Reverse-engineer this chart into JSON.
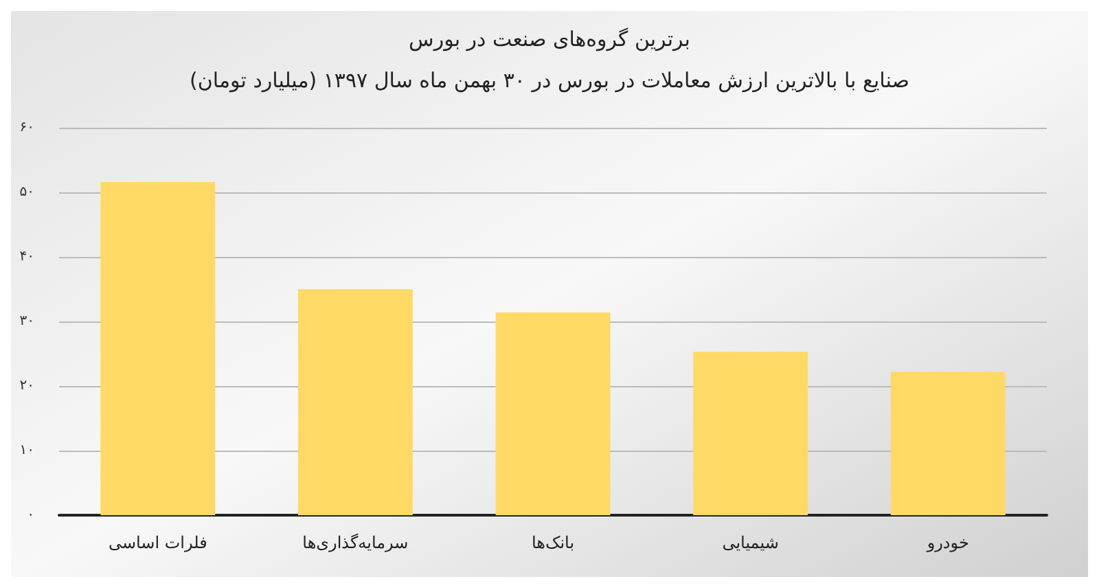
{
  "chart_data": {
    "type": "bar",
    "title": "برترین گروه‌های صنعت در بورس",
    "subtitle": "صنایع با بالاترین ارزش معاملات در بورس در ۳۰ بهمن ماه سال ۱۳۹۷ (میلیارد تومان)",
    "categories": [
      "فلرات اساسی",
      "سرمایه‌گذاری‌ها",
      "بانک‌ها",
      "شیمیایی",
      "خودرو"
    ],
    "values": [
      51.6,
      35.0,
      31.4,
      25.3,
      22.2
    ],
    "color": "#ffd966",
    "ylim": [
      0,
      60
    ],
    "yticks": [
      {
        "value": 0,
        "label": "۰"
      },
      {
        "value": 10,
        "label": "۱۰"
      },
      {
        "value": 20,
        "label": "۲۰"
      },
      {
        "value": 30,
        "label": "۳۰"
      },
      {
        "value": 40,
        "label": "۴۰"
      },
      {
        "value": 50,
        "label": "۵۰"
      },
      {
        "value": 60,
        "label": "۶۰"
      }
    ],
    "grid": "y"
  }
}
